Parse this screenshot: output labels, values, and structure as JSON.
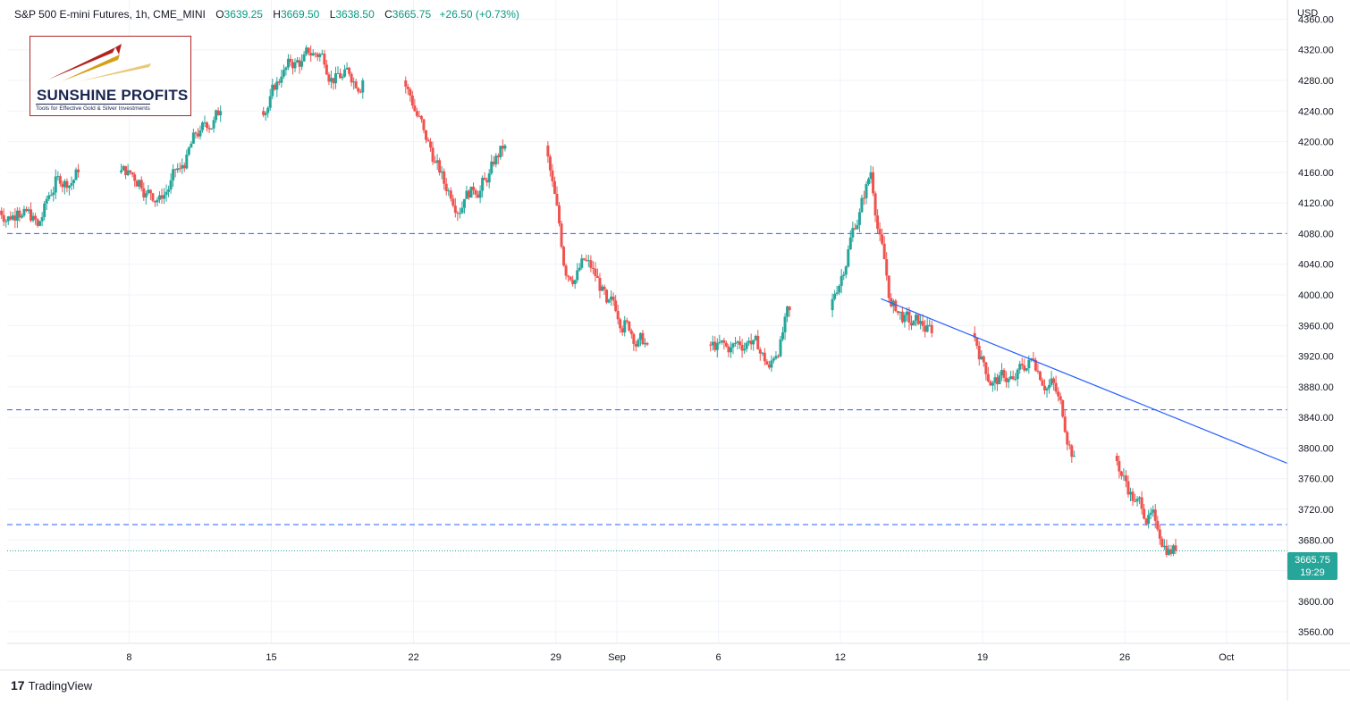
{
  "header": {
    "symbol": "S&P 500 E-mini Futures, 1h, CME_MINI",
    "open_label": "O",
    "open": "3639.25",
    "high_label": "H",
    "high": "3669.50",
    "low_label": "L",
    "low": "3638.50",
    "close_label": "C",
    "close": "3665.75",
    "change": "+26.50 (+0.73%)"
  },
  "logo": {
    "name": "SUNSHINE PROFITS",
    "tagline": "Tools for Effective Gold & Silver Investments"
  },
  "currency": "USD",
  "last_price": {
    "value": "3665.75",
    "countdown": "19:29"
  },
  "footer": {
    "brand": "TradingView",
    "mark": "17"
  },
  "colors": {
    "up": "#26a69a",
    "down": "#ef5350",
    "level_line": "#2962ff",
    "trendline": "#2962ff",
    "last_price_line": "#26a69a",
    "grid": "#f0f3fa",
    "logo_border": "#b22222"
  },
  "chart_data": {
    "type": "line",
    "title": "S&P 500 E-mini Futures, 1h, CME_MINI",
    "ylabel": "USD",
    "xlabel": "",
    "ylim": [
      3545,
      4385
    ],
    "xlim": [
      "2022-08-02",
      "2022-10-04"
    ],
    "y_ticks": [
      3560,
      3600,
      3640,
      3680,
      3720,
      3760,
      3800,
      3840,
      3880,
      3920,
      3960,
      4000,
      4040,
      4080,
      4120,
      4160,
      4200,
      4240,
      4280,
      4320,
      4360
    ],
    "y_tick_labels": [
      "3560.00",
      "3600.00",
      "3640.00",
      "3680.00",
      "3720.00",
      "3760.00",
      "3800.00",
      "3840.00",
      "3880.00",
      "3920.00",
      "3960.00",
      "4000.00",
      "4040.00",
      "4080.00",
      "4120.00",
      "4160.00",
      "4200.00",
      "4240.00",
      "4280.00",
      "4320.00",
      "4360.00"
    ],
    "x_ticks": [
      "2022-08-08",
      "2022-08-15",
      "2022-08-22",
      "2022-08-29",
      "2022-09-01",
      "2022-09-06",
      "2022-09-12",
      "2022-09-19",
      "2022-09-26",
      "2022-10-01"
    ],
    "x_tick_labels": [
      "8",
      "15",
      "22",
      "29",
      "Sep",
      "6",
      "12",
      "19",
      "26",
      "Oct"
    ],
    "grid": true,
    "series": [
      {
        "x": [
          "2022-08-02",
          "2022-08-03",
          "2022-08-04",
          "2022-08-05",
          "2022-08-08",
          "2022-08-09",
          "2022-08-10",
          "2022-08-11",
          "2022-08-12",
          "2022-08-15",
          "2022-08-16",
          "2022-08-17",
          "2022-08-18",
          "2022-08-19",
          "2022-08-22",
          "2022-08-23",
          "2022-08-24",
          "2022-08-25",
          "2022-08-26",
          "2022-08-29",
          "2022-08-30",
          "2022-08-31",
          "2022-09-01",
          "2022-09-02",
          "2022-09-06",
          "2022-09-07",
          "2022-09-08",
          "2022-09-09",
          "2022-09-12",
          "2022-09-13",
          "2022-09-14",
          "2022-09-15",
          "2022-09-16",
          "2022-09-19",
          "2022-09-20",
          "2022-09-21",
          "2022-09-22",
          "2022-09-23",
          "2022-09-26",
          "2022-09-27",
          "2022-09-28"
        ],
        "values": [
          4110,
          4090,
          4155,
          4160,
          4150,
          4130,
          4165,
          4215,
          4240,
          4285,
          4305,
          4315,
          4285,
          4280,
          4215,
          4145,
          4125,
          4150,
          4195,
          4025,
          4045,
          3990,
          3965,
          3935,
          3925,
          3940,
          3905,
          3980,
          4075,
          4160,
          3985,
          3960,
          3950,
          3885,
          3890,
          3915,
          3885,
          3790,
          3730,
          3705,
          3665.75
        ]
      }
    ],
    "support_levels": [
      4080,
      3850,
      3700
    ],
    "trendline": {
      "from": [
        "2022-09-14",
        3995
      ],
      "to": [
        "2022-10-04",
        3780
      ]
    },
    "last_price": 3665.75
  }
}
